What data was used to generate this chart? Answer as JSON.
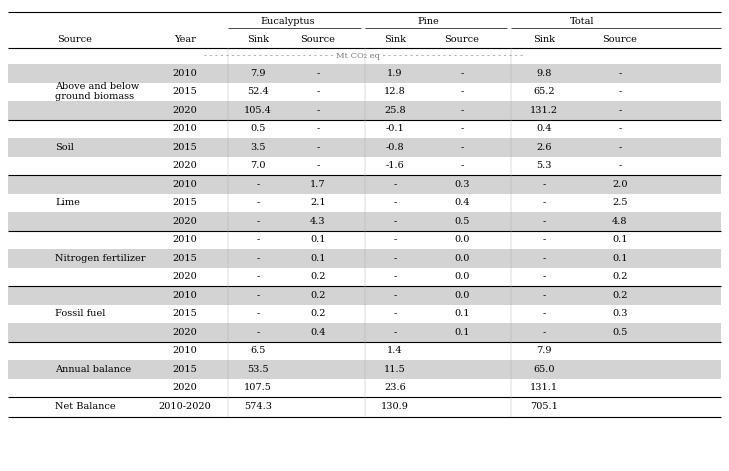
{
  "col_headers_top": [
    "Eucalyptus",
    "Pine",
    "Total"
  ],
  "col_headers_sub": [
    "Source",
    "Year",
    "Sink",
    "Source",
    "Sink",
    "Source",
    "Sink",
    "Source"
  ],
  "unit_label": "Mt CO₂ eq",
  "rows": [
    {
      "source": "Above and below\nground biomass",
      "year": "2010",
      "data": [
        "7.9",
        "-",
        "1.9",
        "-",
        "9.8",
        "-"
      ],
      "shaded": true
    },
    {
      "source": "",
      "year": "2015",
      "data": [
        "52.4",
        "-",
        "12.8",
        "-",
        "65.2",
        "-"
      ],
      "shaded": false
    },
    {
      "source": "",
      "year": "2020",
      "data": [
        "105.4",
        "-",
        "25.8",
        "-",
        "131.2",
        "-"
      ],
      "shaded": true
    },
    {
      "source": "Soil",
      "year": "2010",
      "data": [
        "0.5",
        "-",
        "-0.1",
        "-",
        "0.4",
        "-"
      ],
      "shaded": false
    },
    {
      "source": "",
      "year": "2015",
      "data": [
        "3.5",
        "-",
        "-0.8",
        "-",
        "2.6",
        "-"
      ],
      "shaded": true
    },
    {
      "source": "",
      "year": "2020",
      "data": [
        "7.0",
        "-",
        "-1.6",
        "-",
        "5.3",
        "-"
      ],
      "shaded": false
    },
    {
      "source": "Lime",
      "year": "2010",
      "data": [
        "-",
        "1.7",
        "-",
        "0.3",
        "-",
        "2.0"
      ],
      "shaded": true
    },
    {
      "source": "",
      "year": "2015",
      "data": [
        "-",
        "2.1",
        "-",
        "0.4",
        "-",
        "2.5"
      ],
      "shaded": false
    },
    {
      "source": "",
      "year": "2020",
      "data": [
        "-",
        "4.3",
        "-",
        "0.5",
        "-",
        "4.8"
      ],
      "shaded": true
    },
    {
      "source": "Nitrogen fertilizer",
      "year": "2010",
      "data": [
        "-",
        "0.1",
        "-",
        "0.0",
        "-",
        "0.1"
      ],
      "shaded": false
    },
    {
      "source": "",
      "year": "2015",
      "data": [
        "-",
        "0.1",
        "-",
        "0.0",
        "-",
        "0.1"
      ],
      "shaded": true
    },
    {
      "source": "",
      "year": "2020",
      "data": [
        "-",
        "0.2",
        "-",
        "0.0",
        "-",
        "0.2"
      ],
      "shaded": false
    },
    {
      "source": "Fossil fuel",
      "year": "2010",
      "data": [
        "-",
        "0.2",
        "-",
        "0.0",
        "-",
        "0.2"
      ],
      "shaded": true
    },
    {
      "source": "",
      "year": "2015",
      "data": [
        "-",
        "0.2",
        "-",
        "0.1",
        "-",
        "0.3"
      ],
      "shaded": false
    },
    {
      "source": "",
      "year": "2020",
      "data": [
        "-",
        "0.4",
        "-",
        "0.1",
        "-",
        "0.5"
      ],
      "shaded": true
    },
    {
      "source": "Annual balance",
      "year": "2010",
      "data": [
        "6.5",
        "",
        "1.4",
        "",
        "7.9",
        ""
      ],
      "shaded": false
    },
    {
      "source": "",
      "year": "2015",
      "data": [
        "53.5",
        "",
        "11.5",
        "",
        "65.0",
        ""
      ],
      "shaded": true
    },
    {
      "source": "",
      "year": "2020",
      "data": [
        "107.5",
        "",
        "23.6",
        "",
        "131.1",
        ""
      ],
      "shaded": false
    }
  ],
  "net_balance": {
    "source": "Net Balance",
    "year": "2010-2020",
    "data": [
      "574.3",
      "",
      "130.9",
      "",
      "705.1",
      ""
    ]
  },
  "bg_color": "#ffffff",
  "shade_color": "#d3d3d3",
  "font_size": 7.0,
  "group_end_rows": [
    2,
    5,
    8,
    11,
    14,
    17
  ]
}
